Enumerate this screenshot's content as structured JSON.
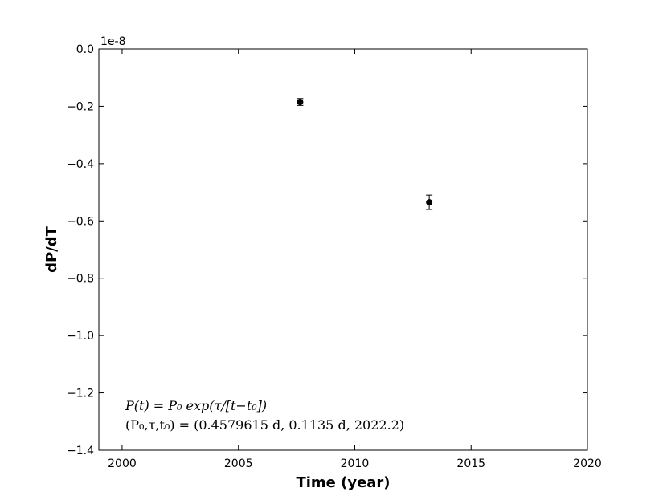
{
  "chart_data": {
    "type": "line",
    "xlabel": "Time (year)",
    "ylabel": "dP/dT",
    "y_offset_label": "1e-8",
    "xlim": [
      1999,
      2020
    ],
    "ylim": [
      -1.4,
      0.0
    ],
    "x_ticks": [
      2000,
      2005,
      2010,
      2015,
      2020
    ],
    "x_tick_labels": [
      "2000",
      "2005",
      "2010",
      "2015",
      "2020"
    ],
    "y_ticks": [
      0.0,
      -0.2,
      -0.4,
      -0.6,
      -0.8,
      -1.0,
      -1.2,
      -1.4
    ],
    "y_tick_labels": [
      "0.0",
      "−0.2",
      "−0.4",
      "−0.6",
      "−0.8",
      "−1.0",
      "−1.2",
      "−1.4"
    ],
    "grid": false,
    "model": {
      "P0": 0.4579615,
      "tau": 0.1135,
      "t0": 2022.2
    },
    "points": [
      {
        "x": 2007.65,
        "y": -0.185,
        "err": 0.012
      },
      {
        "x": 2013.2,
        "y": -0.535,
        "err": 0.025
      }
    ],
    "annotation": {
      "line1": "P(t) = P₀ exp(τ/[t−t₀])",
      "line2": "(P₀,τ,t₀) = (0.4579615 d, 0.1135 d, 2022.2)"
    }
  }
}
